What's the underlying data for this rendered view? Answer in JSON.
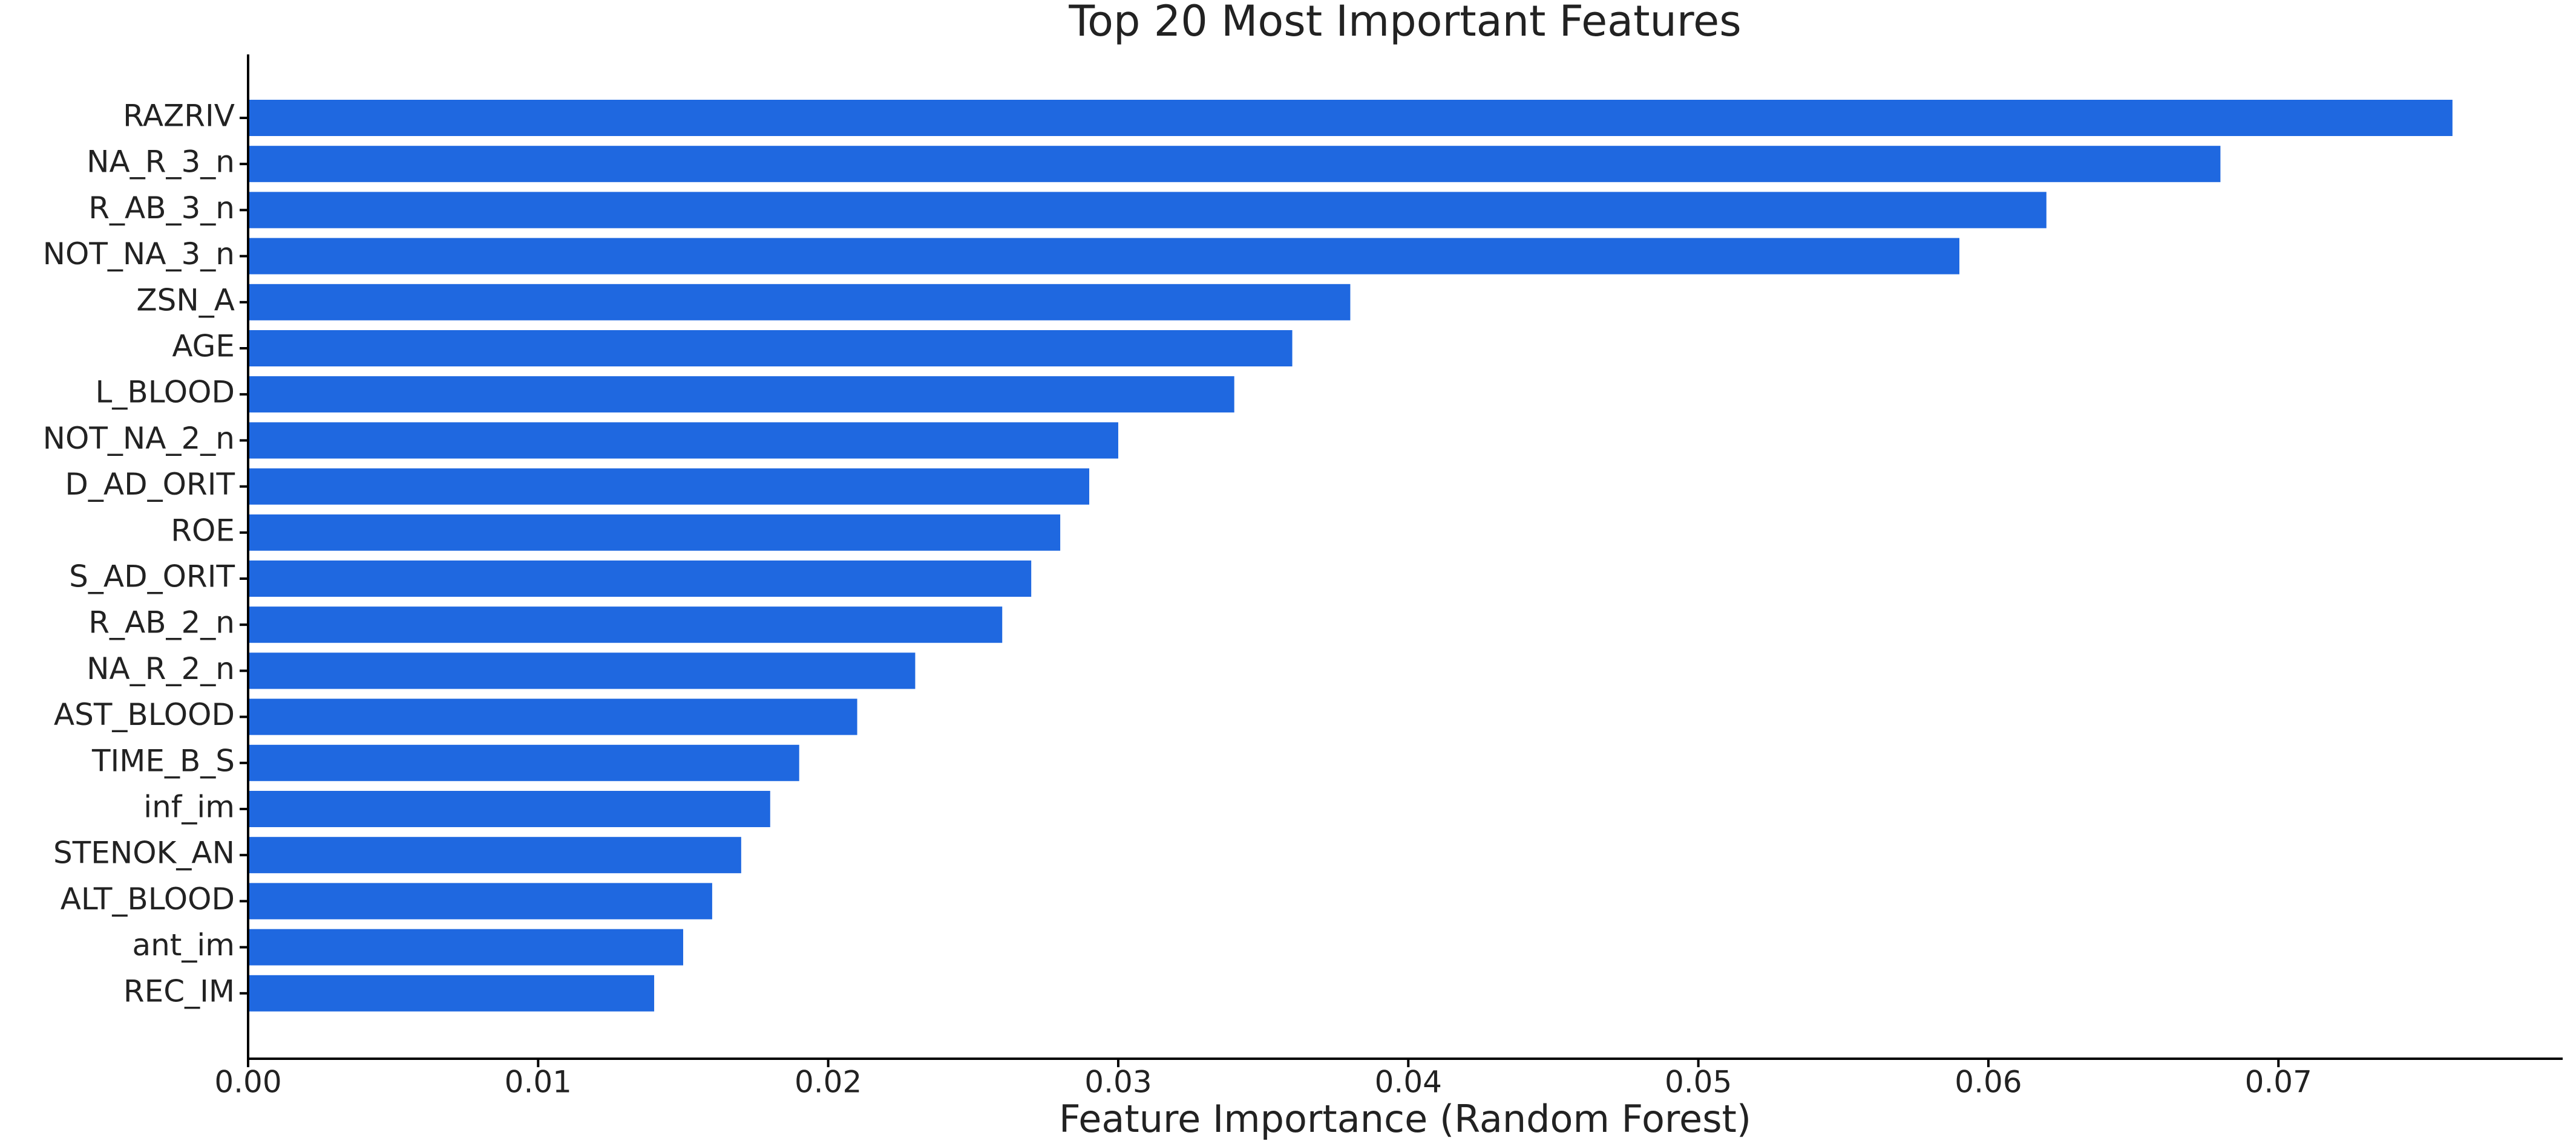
{
  "chart_data": {
    "type": "barh",
    "title": "Top 20 Most Important Features",
    "xlabel": "Feature Importance (Random Forest)",
    "categories": [
      "RAZRIV",
      "NA_R_3_n",
      "R_AB_3_n",
      "NOT_NA_3_n",
      "ZSN_A",
      "AGE",
      "L_BLOOD",
      "NOT_NA_2_n",
      "D_AD_ORIT",
      "ROE",
      "S_AD_ORIT",
      "R_AB_2_n",
      "NA_R_2_n",
      "AST_BLOOD",
      "TIME_B_S",
      "inf_im",
      "STENOK_AN",
      "ALT_BLOOD",
      "ant_im",
      "REC_IM"
    ],
    "values": [
      0.076,
      0.068,
      0.062,
      0.059,
      0.038,
      0.036,
      0.034,
      0.03,
      0.029,
      0.028,
      0.027,
      0.026,
      0.023,
      0.021,
      0.019,
      0.018,
      0.017,
      0.016,
      0.015,
      0.014
    ],
    "color": "#1f68e0",
    "xlim": [
      0,
      0.0798
    ],
    "xticks": [
      {
        "value": 0,
        "label": "0.00"
      },
      {
        "value": 0.01,
        "label": "0.01"
      },
      {
        "value": 0.02,
        "label": "0.02"
      },
      {
        "value": 0.03,
        "label": "0.03"
      },
      {
        "value": 0.04,
        "label": "0.04"
      },
      {
        "value": 0.05,
        "label": "0.05"
      },
      {
        "value": 0.06,
        "label": "0.06"
      },
      {
        "value": 0.07,
        "label": "0.07"
      }
    ],
    "grid": false
  }
}
